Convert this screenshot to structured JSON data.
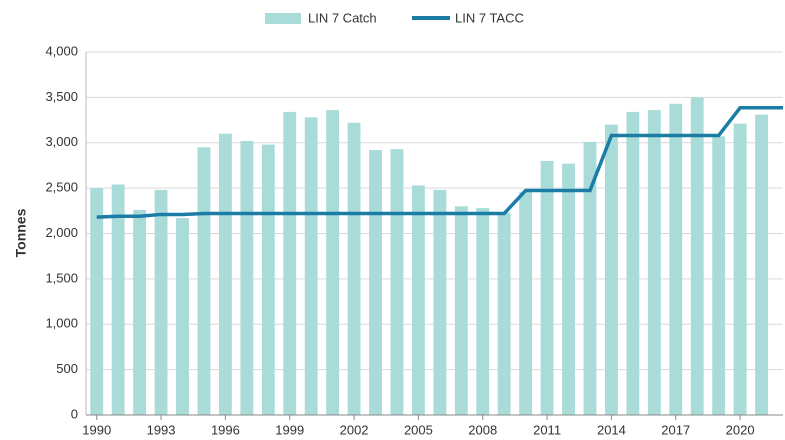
{
  "chart_data": {
    "type": "bar-line",
    "y_label": "Tonnes",
    "x": [
      1990,
      1991,
      1992,
      1993,
      1994,
      1995,
      1996,
      1997,
      1998,
      1999,
      2000,
      2001,
      2002,
      2003,
      2004,
      2005,
      2006,
      2007,
      2008,
      2009,
      2010,
      2011,
      2012,
      2013,
      2014,
      2015,
      2016,
      2017,
      2018,
      2019,
      2020,
      2021,
      2022
    ],
    "series": [
      {
        "name": "LIN 7 Catch",
        "type": "bar",
        "color": "#a9dcd8",
        "values": [
          2500,
          2540,
          2260,
          2480,
          2170,
          2950,
          3100,
          3020,
          2980,
          3340,
          3280,
          3360,
          3220,
          2920,
          2930,
          2530,
          2480,
          2300,
          2280,
          2230,
          2460,
          2800,
          2770,
          3010,
          3200,
          3340,
          3360,
          3430,
          3500,
          3070,
          3210,
          3310,
          null
        ]
      },
      {
        "name": "LIN 7 TACC",
        "type": "line",
        "color": "#1b7ca6",
        "values": [
          2180,
          2190,
          2190,
          2210,
          2210,
          2220,
          2220,
          2220,
          2220,
          2220,
          2220,
          2220,
          2220,
          2220,
          2220,
          2220,
          2220,
          2220,
          2220,
          2220,
          2474,
          2474,
          2474,
          2474,
          3080,
          3080,
          3080,
          3080,
          3080,
          3080,
          3385,
          3385,
          3385
        ]
      }
    ],
    "xlim": [
      1989.5,
      2022
    ],
    "xticks": [
      1990,
      1993,
      1996,
      1999,
      2002,
      2005,
      2008,
      2011,
      2014,
      2017,
      2020
    ],
    "ylim": [
      0,
      4000
    ],
    "yticks": [
      0,
      {
        "value": 500,
        "label": "500"
      },
      {
        "value": 1000,
        "label": "1,000"
      },
      {
        "value": 1500,
        "label": "1,500"
      },
      {
        "value": 2000,
        "label": "2,000"
      },
      {
        "value": 2500,
        "label": "2,500"
      },
      {
        "value": 3000,
        "label": "3,000"
      },
      {
        "value": 3500,
        "label": "3,500"
      },
      {
        "value": 4000,
        "label": "4,000"
      }
    ],
    "grid": true,
    "legend": "top"
  }
}
